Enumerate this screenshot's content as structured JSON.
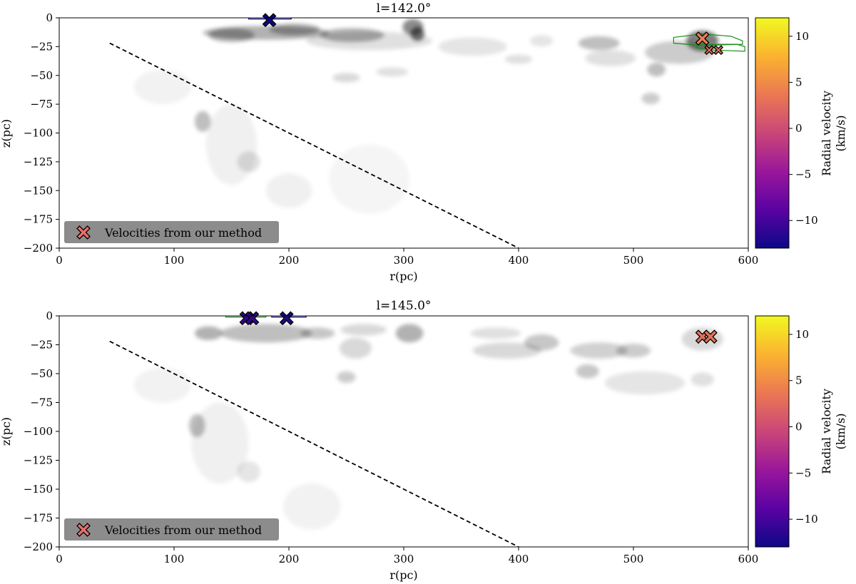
{
  "figure": {
    "cmap_colors": [
      "#0d0887",
      "#5b02a3",
      "#9a179b",
      "#cb4678",
      "#eb7852",
      "#fbb32f",
      "#f0f921"
    ]
  },
  "chart_data": [
    {
      "type": "heatmap",
      "title": "l=142.0°",
      "xlabel": "r(pc)",
      "ylabel": "z(pc)",
      "xlim": [
        0,
        600
      ],
      "ylim": [
        -200,
        0
      ],
      "xticks": [
        0,
        100,
        200,
        300,
        400,
        500,
        600
      ],
      "yticks": [
        0,
        -25,
        -50,
        -75,
        -100,
        -125,
        -150,
        -175,
        -200
      ],
      "legend": {
        "label": "Velocities from our method",
        "position": "lower-left"
      },
      "colorbar": {
        "label": "Radial velocity\n(km/s)",
        "range": [
          -13,
          12
        ],
        "ticks": [
          10,
          5,
          0,
          -5,
          -10
        ]
      },
      "dashed_line": {
        "x": [
          44,
          400
        ],
        "y": [
          -22,
          -200
        ]
      },
      "markers": [
        {
          "r": 183,
          "z": -2,
          "v": -13
        },
        {
          "r": 560,
          "z": -18,
          "v": 4
        },
        {
          "r": 566,
          "z": -28,
          "v": 3
        },
        {
          "r": 574,
          "z": -28,
          "v": 3
        }
      ],
      "density_blobs": [
        {
          "r": 180,
          "z": -13,
          "sr": 55,
          "sz": 6,
          "a": 0.3
        },
        {
          "r": 150,
          "z": -15,
          "sr": 20,
          "sz": 6,
          "a": 0.3
        },
        {
          "r": 205,
          "z": -10,
          "sr": 22,
          "sz": 5,
          "a": 0.3
        },
        {
          "r": 255,
          "z": -15,
          "sr": 28,
          "sz": 6,
          "a": 0.3
        },
        {
          "r": 308,
          "z": -8,
          "sr": 9,
          "sz": 7,
          "a": 0.45
        },
        {
          "r": 312,
          "z": -14,
          "sr": 6,
          "sz": 6,
          "a": 0.55
        },
        {
          "r": 270,
          "z": -20,
          "sr": 55,
          "sz": 8,
          "a": 0.12
        },
        {
          "r": 360,
          "z": -25,
          "sr": 30,
          "sz": 8,
          "a": 0.1
        },
        {
          "r": 250,
          "z": -52,
          "sr": 12,
          "sz": 4,
          "a": 0.15
        },
        {
          "r": 290,
          "z": -47,
          "sr": 14,
          "sz": 4,
          "a": 0.12
        },
        {
          "r": 400,
          "z": -36,
          "sr": 12,
          "sz": 4,
          "a": 0.12
        },
        {
          "r": 420,
          "z": -20,
          "sr": 10,
          "sz": 5,
          "a": 0.1
        },
        {
          "r": 470,
          "z": -22,
          "sr": 18,
          "sz": 6,
          "a": 0.25
        },
        {
          "r": 480,
          "z": -35,
          "sr": 22,
          "sz": 7,
          "a": 0.12
        },
        {
          "r": 560,
          "z": -20,
          "sr": 14,
          "sz": 9,
          "a": 0.5
        },
        {
          "r": 540,
          "z": -30,
          "sr": 30,
          "sz": 10,
          "a": 0.2
        },
        {
          "r": 520,
          "z": -45,
          "sr": 8,
          "sz": 6,
          "a": 0.25
        },
        {
          "r": 515,
          "z": -70,
          "sr": 8,
          "sz": 5,
          "a": 0.2
        },
        {
          "r": 125,
          "z": -90,
          "sr": 7,
          "sz": 9,
          "a": 0.25
        },
        {
          "r": 165,
          "z": -125,
          "sr": 10,
          "sz": 9,
          "a": 0.12
        },
        {
          "r": 200,
          "z": -150,
          "sr": 20,
          "sz": 15,
          "a": 0.06
        },
        {
          "r": 150,
          "z": -110,
          "sr": 22,
          "sz": 35,
          "a": 0.06
        },
        {
          "r": 270,
          "z": -140,
          "sr": 35,
          "sz": 30,
          "a": 0.04
        },
        {
          "r": 90,
          "z": -60,
          "sr": 25,
          "sz": 15,
          "a": 0.05
        }
      ],
      "contours": [
        {
          "color": "#00008b",
          "points": [
            [
              165,
              -1
            ],
            [
              202,
              -1
            ],
            [
              202,
              0.5
            ],
            [
              165,
              0.5
            ]
          ]
        },
        {
          "color": "#1a8f1a",
          "points": [
            [
              535,
              -17
            ],
            [
              560,
              -14
            ],
            [
              585,
              -16
            ],
            [
              595,
              -20
            ],
            [
              595,
              -23
            ],
            [
              558,
              -24
            ],
            [
              535,
              -22
            ]
          ]
        },
        {
          "color": "#1a8f1a",
          "points": [
            [
              555,
              -23
            ],
            [
              590,
              -23
            ],
            [
              597,
              -25
            ],
            [
              597,
              -29
            ],
            [
              570,
              -28
            ],
            [
              555,
              -26
            ]
          ]
        }
      ]
    },
    {
      "type": "heatmap",
      "title": "l=145.0°",
      "xlabel": "r(pc)",
      "ylabel": "z(pc)",
      "xlim": [
        0,
        600
      ],
      "ylim": [
        -200,
        0
      ],
      "xticks": [
        0,
        100,
        200,
        300,
        400,
        500,
        600
      ],
      "yticks": [
        0,
        -25,
        -50,
        -75,
        -100,
        -125,
        -150,
        -175,
        -200
      ],
      "legend": {
        "label": "Velocities from our method",
        "position": "lower-left"
      },
      "colorbar": {
        "label": "Radial velocity\n(km/s)",
        "range": [
          -13,
          12
        ],
        "ticks": [
          10,
          5,
          0,
          -5,
          -10
        ]
      },
      "dashed_line": {
        "x": [
          44,
          400
        ],
        "y": [
          -22,
          -200
        ]
      },
      "markers": [
        {
          "r": 163,
          "z": -2,
          "v": -11
        },
        {
          "r": 168,
          "z": -2,
          "v": -11
        },
        {
          "r": 198,
          "z": -2,
          "v": -12
        },
        {
          "r": 560,
          "z": -18,
          "v": 3
        },
        {
          "r": 567,
          "z": -18,
          "v": 3
        }
      ],
      "density_blobs": [
        {
          "r": 180,
          "z": -15,
          "sr": 40,
          "sz": 8,
          "a": 0.25
        },
        {
          "r": 130,
          "z": -15,
          "sr": 12,
          "sz": 6,
          "a": 0.3
        },
        {
          "r": 225,
          "z": -15,
          "sr": 15,
          "sz": 5,
          "a": 0.22
        },
        {
          "r": 305,
          "z": -15,
          "sr": 12,
          "sz": 8,
          "a": 0.3
        },
        {
          "r": 265,
          "z": -12,
          "sr": 20,
          "sz": 5,
          "a": 0.15
        },
        {
          "r": 258,
          "z": -28,
          "sr": 14,
          "sz": 9,
          "a": 0.15
        },
        {
          "r": 250,
          "z": -53,
          "sr": 8,
          "sz": 5,
          "a": 0.2
        },
        {
          "r": 380,
          "z": -15,
          "sr": 22,
          "sz": 5,
          "a": 0.12
        },
        {
          "r": 390,
          "z": -30,
          "sr": 30,
          "sz": 7,
          "a": 0.15
        },
        {
          "r": 420,
          "z": -23,
          "sr": 15,
          "sz": 7,
          "a": 0.22
        },
        {
          "r": 470,
          "z": -30,
          "sr": 25,
          "sz": 7,
          "a": 0.18
        },
        {
          "r": 500,
          "z": -30,
          "sr": 15,
          "sz": 6,
          "a": 0.2
        },
        {
          "r": 460,
          "z": -48,
          "sr": 10,
          "sz": 6,
          "a": 0.22
        },
        {
          "r": 510,
          "z": -58,
          "sr": 35,
          "sz": 10,
          "a": 0.1
        },
        {
          "r": 560,
          "z": -55,
          "sr": 10,
          "sz": 6,
          "a": 0.12
        },
        {
          "r": 560,
          "z": -20,
          "sr": 18,
          "sz": 10,
          "a": 0.15
        },
        {
          "r": 120,
          "z": -95,
          "sr": 7,
          "sz": 10,
          "a": 0.25
        },
        {
          "r": 165,
          "z": -135,
          "sr": 10,
          "sz": 9,
          "a": 0.1
        },
        {
          "r": 140,
          "z": -110,
          "sr": 25,
          "sz": 35,
          "a": 0.06
        },
        {
          "r": 220,
          "z": -165,
          "sr": 25,
          "sz": 20,
          "a": 0.05
        },
        {
          "r": 90,
          "z": -60,
          "sr": 25,
          "sz": 15,
          "a": 0.05
        }
      ],
      "contours": [
        {
          "color": "#1a8f1a",
          "points": [
            [
              145,
              -1
            ],
            [
              180,
              -1
            ],
            [
              180,
              0.5
            ],
            [
              145,
              0.5
            ]
          ]
        },
        {
          "color": "#00008b",
          "points": [
            [
              185,
              -1
            ],
            [
              215,
              -1
            ],
            [
              215,
              0.5
            ],
            [
              185,
              0.5
            ]
          ]
        }
      ]
    }
  ]
}
